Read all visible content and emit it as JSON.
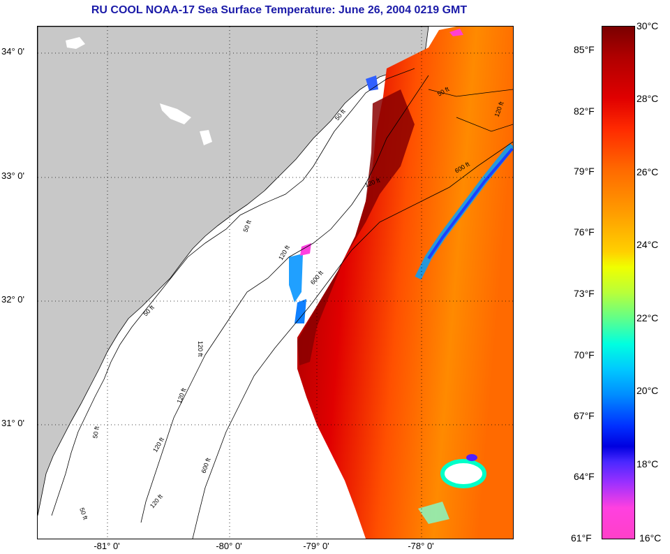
{
  "title": "RU COOL  NOAA-17  Sea Surface Temperature:  June 26, 2004 0219 GMT",
  "lat_labels": [
    "34° 0'",
    "33° 0'",
    "32° 0'",
    "31° 0'"
  ],
  "lon_labels": [
    "-81° 0'",
    "-80° 0'",
    "-79° 0'",
    "-78° 0'"
  ],
  "contour_labels": [
    "50 ft",
    "50 ft",
    "120 ft",
    "600 ft",
    "120 ft",
    "50 ft",
    "120 ft",
    "600 ft",
    "120 ft",
    "50 ft",
    "120 ft",
    "600 ft",
    "50 ft",
    "120 ft",
    "50 ft",
    "120 ft"
  ],
  "colorbar": {
    "fahrenheit": [
      "85°F",
      "82°F",
      "79°F",
      "76°F",
      "73°F",
      "70°F",
      "67°F",
      "64°F",
      "61°F"
    ],
    "celsius": [
      "30°C",
      "28°C",
      "26°C",
      "24°C",
      "22°C",
      "20°C",
      "18°C",
      "16°C"
    ]
  },
  "colors": {
    "title": "#1a1aa8",
    "land": "#c8c8c8",
    "warm": "#b00000",
    "cool": "#0080ff"
  }
}
